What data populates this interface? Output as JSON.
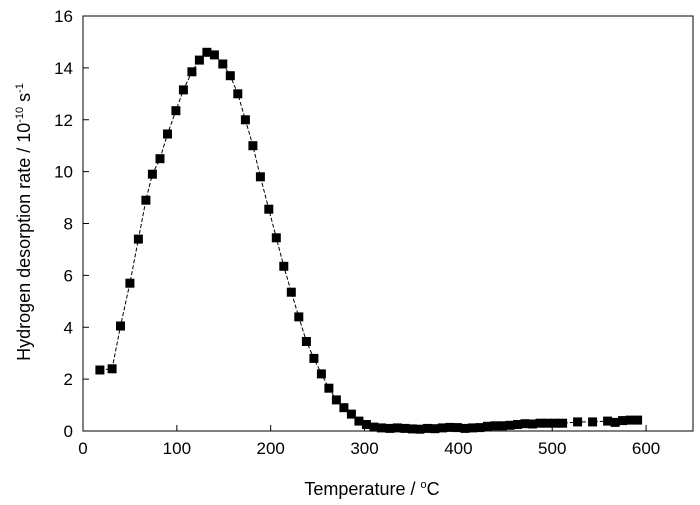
{
  "chart_data": {
    "type": "line",
    "title": "",
    "xlabel": {
      "main": "Temperature / ",
      "sup": "o",
      "tail": "C"
    },
    "ylabel": {
      "main": "Hydrogen desorption rate / 10",
      "sup1": "-10",
      "mid": " s",
      "sup2": "-1"
    },
    "xlim": [
      0,
      650
    ],
    "ylim": [
      0,
      16
    ],
    "x_ticks": [
      0,
      100,
      200,
      300,
      400,
      500,
      600
    ],
    "y_ticks": [
      0,
      2,
      4,
      6,
      8,
      10,
      12,
      14,
      16
    ],
    "marker": "square",
    "line_style": "dashed",
    "color": "#000000",
    "grid": false,
    "legend": "none",
    "series": [
      {
        "x": [
          18,
          31,
          40,
          50,
          59,
          67,
          74,
          82,
          90,
          99,
          107,
          116,
          124,
          132,
          140,
          149,
          157,
          165,
          173,
          181,
          189,
          198,
          206,
          214,
          222,
          230,
          238,
          246,
          254,
          262,
          270,
          278,
          286,
          294,
          302,
          310,
          318,
          327,
          335,
          343,
          351,
          359,
          367,
          375,
          383,
          391,
          399,
          407,
          415,
          423,
          431,
          439,
          447,
          455,
          463,
          471,
          479,
          487,
          495,
          503,
          511,
          527,
          543,
          559,
          567,
          575,
          583,
          591
        ],
        "y": [
          2.35,
          2.4,
          4.05,
          5.7,
          7.4,
          8.9,
          9.9,
          10.5,
          11.45,
          12.35,
          13.15,
          13.85,
          14.3,
          14.6,
          14.5,
          14.15,
          13.7,
          13.0,
          12.0,
          11.0,
          9.8,
          8.55,
          7.45,
          6.35,
          5.35,
          4.4,
          3.45,
          2.8,
          2.2,
          1.65,
          1.2,
          0.9,
          0.65,
          0.38,
          0.25,
          0.15,
          0.12,
          0.1,
          0.12,
          0.1,
          0.08,
          0.07,
          0.1,
          0.09,
          0.12,
          0.14,
          0.13,
          0.1,
          0.12,
          0.13,
          0.18,
          0.2,
          0.2,
          0.22,
          0.25,
          0.28,
          0.27,
          0.3,
          0.3,
          0.3,
          0.3,
          0.35,
          0.35,
          0.38,
          0.33,
          0.4,
          0.42,
          0.42
        ]
      }
    ]
  }
}
